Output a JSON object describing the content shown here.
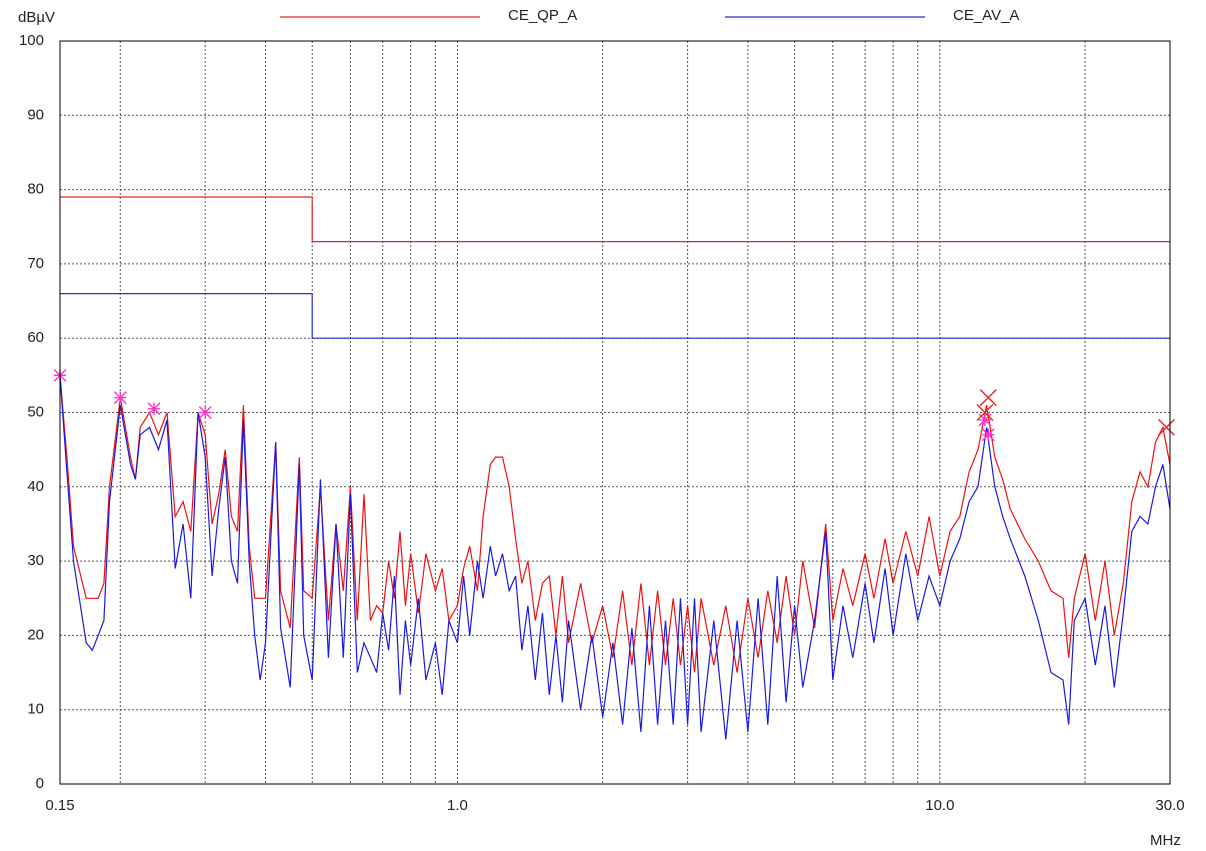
{
  "chart_data": {
    "type": "line",
    "ylabel": "dBµV",
    "xlabel": "MHz",
    "xlog": true,
    "grid": true,
    "legend": "top",
    "xlim": [
      0.15,
      30
    ],
    "ylim": [
      0,
      100
    ],
    "yticks": [
      0,
      10,
      20,
      30,
      40,
      50,
      60,
      70,
      80,
      90,
      100
    ],
    "xticks": [
      0.15,
      {
        "value": 1,
        "label": "1.0"
      },
      {
        "value": 10,
        "label": "10.0"
      },
      {
        "value": 30,
        "label": "30.0"
      }
    ],
    "xminor": [
      0.2,
      0.3,
      0.4,
      0.5,
      0.6,
      0.7,
      0.8,
      0.9,
      2,
      3,
      4,
      5,
      6,
      7,
      8,
      9,
      20
    ],
    "series": [
      {
        "name": "CE_QP_A",
        "color": "#e8251c",
        "x": [
          0.15,
          0.5,
          0.5,
          30
        ],
        "values": [
          79,
          79,
          73,
          73
        ]
      },
      {
        "name": "CE_AV_A",
        "color": "#2b2fd6",
        "x": [
          0.15,
          0.5,
          0.5,
          30
        ],
        "values": [
          66,
          66,
          60,
          60
        ]
      },
      {
        "color": "#ee1111",
        "x": [
          0.15,
          0.155,
          0.16,
          0.17,
          0.18,
          0.185,
          0.19,
          0.2,
          0.21,
          0.215,
          0.22,
          0.23,
          0.24,
          0.25,
          0.26,
          0.27,
          0.28,
          0.29,
          0.3,
          0.31,
          0.32,
          0.33,
          0.34,
          0.35,
          0.36,
          0.37,
          0.38,
          0.4,
          0.42,
          0.43,
          0.45,
          0.47,
          0.48,
          0.5,
          0.52,
          0.54,
          0.56,
          0.58,
          0.6,
          0.62,
          0.64,
          0.66,
          0.68,
          0.7,
          0.72,
          0.74,
          0.76,
          0.78,
          0.8,
          0.83,
          0.86,
          0.9,
          0.93,
          0.96,
          1.0,
          1.03,
          1.06,
          1.1,
          1.13,
          1.17,
          1.2,
          1.24,
          1.28,
          1.32,
          1.36,
          1.4,
          1.45,
          1.5,
          1.55,
          1.6,
          1.65,
          1.7,
          1.8,
          1.9,
          2.0,
          2.1,
          2.2,
          2.3,
          2.4,
          2.5,
          2.6,
          2.7,
          2.8,
          2.9,
          3.0,
          3.1,
          3.2,
          3.4,
          3.6,
          3.8,
          4.0,
          4.2,
          4.4,
          4.6,
          4.8,
          5.0,
          5.2,
          5.5,
          5.8,
          6.0,
          6.3,
          6.6,
          7.0,
          7.3,
          7.7,
          8.0,
          8.5,
          9.0,
          9.5,
          10.0,
          10.5,
          11.0,
          11.5,
          12.0,
          12.5,
          13.0,
          13.5,
          14.0,
          15.0,
          16.0,
          17.0,
          18.0,
          18.5,
          19.0,
          20.0,
          21.0,
          22.0,
          23.0,
          24.0,
          25.0,
          26.0,
          27.0,
          28.0,
          29.0,
          30.0
        ],
        "values": [
          55,
          44,
          32,
          25,
          25,
          27,
          40,
          52,
          44,
          41,
          48,
          50,
          47,
          50,
          36,
          38,
          34,
          50,
          47,
          35,
          39,
          45,
          36,
          34,
          51,
          32,
          25,
          25,
          46,
          26,
          21,
          44,
          26,
          25,
          40,
          22,
          35,
          26,
          40,
          22,
          39,
          22,
          24,
          23,
          30,
          25,
          34,
          24,
          31,
          23,
          31,
          26,
          29,
          22,
          24,
          29,
          32,
          26,
          36,
          43,
          44,
          44,
          40,
          33,
          27,
          30,
          22,
          27,
          28,
          20,
          28,
          19,
          27,
          19,
          24,
          17,
          26,
          16,
          27,
          16,
          26,
          16,
          25,
          16,
          24,
          15,
          25,
          16,
          24,
          15,
          25,
          17,
          26,
          19,
          28,
          20,
          30,
          21,
          35,
          22,
          29,
          24,
          31,
          25,
          33,
          27,
          34,
          28,
          36,
          28,
          34,
          36,
          42,
          45,
          51,
          44,
          41,
          37,
          33,
          30,
          26,
          25,
          17,
          25,
          31,
          22,
          30,
          20,
          27,
          38,
          42,
          40,
          46,
          48,
          43
        ]
      },
      {
        "color": "#1a1ae0",
        "x": [
          0.15,
          0.155,
          0.16,
          0.17,
          0.175,
          0.18,
          0.185,
          0.19,
          0.2,
          0.21,
          0.215,
          0.22,
          0.23,
          0.24,
          0.25,
          0.26,
          0.27,
          0.28,
          0.29,
          0.3,
          0.31,
          0.32,
          0.33,
          0.34,
          0.35,
          0.36,
          0.37,
          0.38,
          0.39,
          0.4,
          0.42,
          0.43,
          0.45,
          0.47,
          0.48,
          0.5,
          0.52,
          0.54,
          0.56,
          0.58,
          0.6,
          0.62,
          0.64,
          0.66,
          0.68,
          0.7,
          0.72,
          0.74,
          0.76,
          0.78,
          0.8,
          0.83,
          0.86,
          0.9,
          0.93,
          0.96,
          1.0,
          1.03,
          1.06,
          1.1,
          1.13,
          1.17,
          1.2,
          1.24,
          1.28,
          1.32,
          1.36,
          1.4,
          1.45,
          1.5,
          1.55,
          1.6,
          1.65,
          1.7,
          1.8,
          1.9,
          2.0,
          2.1,
          2.2,
          2.3,
          2.4,
          2.5,
          2.6,
          2.7,
          2.8,
          2.9,
          3.0,
          3.1,
          3.2,
          3.4,
          3.6,
          3.8,
          4.0,
          4.2,
          4.4,
          4.6,
          4.8,
          5.0,
          5.2,
          5.5,
          5.8,
          6.0,
          6.3,
          6.6,
          7.0,
          7.3,
          7.7,
          8.0,
          8.5,
          9.0,
          9.5,
          10.0,
          10.5,
          11.0,
          11.5,
          12.0,
          12.5,
          13.0,
          13.5,
          14.0,
          15.0,
          16.0,
          17.0,
          18.0,
          18.5,
          19.0,
          20.0,
          21.0,
          22.0,
          23.0,
          24.0,
          25.0,
          26.0,
          27.0,
          28.0,
          29.0,
          30.0
        ],
        "values": [
          55,
          42,
          30,
          19,
          18,
          20,
          22,
          38,
          51,
          43,
          41,
          47,
          48,
          45,
          49,
          29,
          35,
          25,
          50,
          44,
          28,
          37,
          44,
          30,
          27,
          49,
          30,
          20,
          14,
          19,
          46,
          21,
          13,
          43,
          20,
          14,
          41,
          17,
          35,
          17,
          39,
          15,
          19,
          17,
          15,
          23,
          18,
          28,
          12,
          22,
          16,
          25,
          14,
          19,
          12,
          22,
          19,
          28,
          20,
          30,
          25,
          32,
          28,
          31,
          26,
          28,
          18,
          24,
          14,
          23,
          12,
          20,
          11,
          22,
          10,
          20,
          9,
          19,
          8,
          21,
          7,
          24,
          8,
          22,
          8,
          25,
          8,
          25,
          7,
          22,
          6,
          22,
          7,
          25,
          8,
          28,
          11,
          24,
          13,
          22,
          34,
          14,
          24,
          17,
          27,
          19,
          29,
          20,
          31,
          22,
          28,
          24,
          30,
          33,
          38,
          40,
          48,
          40,
          36,
          33,
          28,
          22,
          15,
          14,
          8,
          22,
          25,
          16,
          24,
          13,
          23,
          34,
          36,
          35,
          40,
          43,
          37
        ]
      }
    ],
    "markers": [
      {
        "color": "#ff33cc",
        "symbol": "star",
        "x": [
          0.15,
          0.2,
          0.235,
          0.3,
          12.4,
          12.6
        ],
        "values": [
          55,
          52,
          50.5,
          50,
          49,
          47
        ]
      },
      {
        "color": "#ee2222",
        "symbol": "cross",
        "x": [
          12.4,
          12.6,
          29.5
        ],
        "values": [
          50,
          52,
          48
        ]
      }
    ]
  }
}
